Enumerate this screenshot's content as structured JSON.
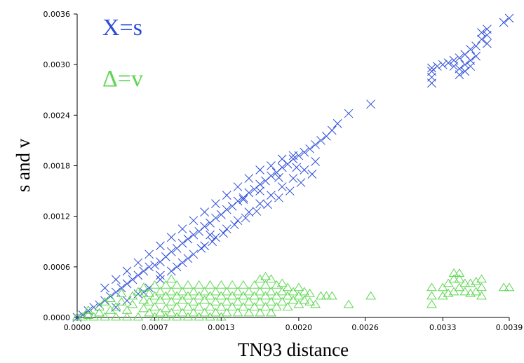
{
  "chart_data": {
    "type": "scatter",
    "xlabel": "TN93 distance",
    "ylabel": "s and v",
    "xlim": [
      0,
      0.0039
    ],
    "ylim": [
      0,
      0.0036
    ],
    "x_ticks": [
      "0.0000",
      "0.0007",
      "0.0013",
      "0.0020",
      "0.0026",
      "0.0033",
      "0.0039"
    ],
    "y_ticks": [
      "0.0000",
      "0.0006",
      "0.0012",
      "0.0018",
      "0.0024",
      "0.0030",
      "0.0036"
    ],
    "grid": false,
    "legend": {
      "placement": "top-left",
      "entries": [
        {
          "label": "X=s",
          "color": "#2a4bd8",
          "marker": "x"
        },
        {
          "label": "Δ=v",
          "color": "#5ed652",
          "marker": "triangle"
        }
      ]
    },
    "series": [
      {
        "name": "s",
        "marker": "x",
        "color": "#2a4bd8",
        "points": [
          [
            0.0,
            0.0
          ],
          [
            5e-05,
            3e-05
          ],
          [
            0.0001,
            8e-05
          ],
          [
            0.00015,
            0.00012
          ],
          [
            0.0002,
            0.00015
          ],
          [
            0.00025,
            0.0002
          ],
          [
            0.0003,
            0.00025
          ],
          [
            0.00035,
            0.0003
          ],
          [
            0.0004,
            0.00035
          ],
          [
            0.00045,
            0.0004
          ],
          [
            0.0005,
            0.00045
          ],
          [
            0.00055,
            0.0005
          ],
          [
            0.0006,
            0.00055
          ],
          [
            0.00065,
            0.0006
          ],
          [
            0.0007,
            0.00062
          ],
          [
            0.00075,
            0.00066
          ],
          [
            0.0008,
            0.00072
          ],
          [
            0.00085,
            0.00078
          ],
          [
            0.0009,
            0.00082
          ],
          [
            0.00095,
            0.00088
          ],
          [
            0.001,
            0.00093
          ],
          [
            0.00105,
            0.00098
          ],
          [
            0.0011,
            0.00102
          ],
          [
            0.00115,
            0.00108
          ],
          [
            0.0012,
            0.00112
          ],
          [
            0.00125,
            0.00118
          ],
          [
            0.0013,
            0.00122
          ],
          [
            0.00135,
            0.00128
          ],
          [
            0.0014,
            0.00132
          ],
          [
            0.00145,
            0.00138
          ],
          [
            0.0015,
            0.00142
          ],
          [
            0.00155,
            0.00148
          ],
          [
            0.0016,
            0.00152
          ],
          [
            0.00165,
            0.00158
          ],
          [
            0.0017,
            0.00162
          ],
          [
            0.00175,
            0.00168
          ],
          [
            0.0018,
            0.00172
          ],
          [
            0.00185,
            0.00178
          ],
          [
            0.0019,
            0.00182
          ],
          [
            0.00195,
            0.00188
          ],
          [
            0.002,
            0.00192
          ],
          [
            0.00205,
            0.00196
          ],
          [
            0.0021,
            0.002
          ],
          [
            0.00215,
            0.00205
          ],
          [
            0.0022,
            0.0021
          ],
          [
            0.00225,
            0.00215
          ],
          [
            0.0023,
            0.00222
          ],
          [
            0.00235,
            0.0023
          ],
          [
            0.00245,
            0.00242
          ],
          [
            0.00265,
            0.00253
          ],
          [
            0.00035,
            0.00012
          ],
          [
            0.00045,
            0.0002
          ],
          [
            0.00055,
            0.00028
          ],
          [
            0.00065,
            0.00035
          ],
          [
            0.00075,
            0.00045
          ],
          [
            0.00085,
            0.00055
          ],
          [
            0.00095,
            0.00065
          ],
          [
            0.00105,
            0.00075
          ],
          [
            0.00115,
            0.00085
          ],
          [
            0.00125,
            0.00095
          ],
          [
            0.00135,
            0.00105
          ],
          [
            0.00145,
            0.00115
          ],
          [
            0.00155,
            0.00125
          ],
          [
            0.00165,
            0.00135
          ],
          [
            0.00175,
            0.00145
          ],
          [
            0.00185,
            0.00155
          ],
          [
            0.00195,
            0.00165
          ],
          [
            0.00205,
            0.00175
          ],
          [
            0.00215,
            0.00185
          ],
          [
            0.00025,
            0.00035
          ],
          [
            0.00035,
            0.00045
          ],
          [
            0.00045,
            0.00055
          ],
          [
            0.00055,
            0.00065
          ],
          [
            0.00065,
            0.00075
          ],
          [
            0.00075,
            0.00085
          ],
          [
            0.00085,
            0.00095
          ],
          [
            0.00095,
            0.00105
          ],
          [
            0.00105,
            0.00115
          ],
          [
            0.00115,
            0.00125
          ],
          [
            0.00125,
            0.00135
          ],
          [
            0.00135,
            0.00145
          ],
          [
            0.00145,
            0.00155
          ],
          [
            0.00155,
            0.00165
          ],
          [
            0.00165,
            0.00175
          ],
          [
            0.00175,
            0.0018
          ],
          [
            0.00185,
            0.00188
          ],
          [
            0.00195,
            0.00192
          ],
          [
            0.0006,
            0.0003
          ],
          [
            0.00075,
            0.0005
          ],
          [
            0.0009,
            0.0006
          ],
          [
            0.001,
            0.0007
          ],
          [
            0.00112,
            0.00082
          ],
          [
            0.00122,
            0.0009
          ],
          [
            0.00132,
            0.001
          ],
          [
            0.00142,
            0.0011
          ],
          [
            0.00152,
            0.00118
          ],
          [
            0.00162,
            0.00126
          ],
          [
            0.00172,
            0.00134
          ],
          [
            0.00182,
            0.00142
          ],
          [
            0.00192,
            0.0015
          ],
          [
            0.00202,
            0.0016
          ],
          [
            0.00212,
            0.0017
          ],
          [
            0.0012,
            0.00098
          ],
          [
            0.0015,
            0.0014
          ],
          [
            0.00165,
            0.0015
          ],
          [
            0.00182,
            0.00166
          ],
          [
            0.00198,
            0.00178
          ],
          [
            0.0032,
            0.00278
          ],
          [
            0.0032,
            0.00285
          ],
          [
            0.0032,
            0.00292
          ],
          [
            0.0032,
            0.00296
          ],
          [
            0.00325,
            0.00298
          ],
          [
            0.0033,
            0.003
          ],
          [
            0.00335,
            0.00302
          ],
          [
            0.0034,
            0.00298
          ],
          [
            0.0034,
            0.00305
          ],
          [
            0.00345,
            0.00308
          ],
          [
            0.00345,
            0.00295
          ],
          [
            0.00345,
            0.00288
          ],
          [
            0.0035,
            0.00312
          ],
          [
            0.0035,
            0.003
          ],
          [
            0.0035,
            0.00292
          ],
          [
            0.00355,
            0.00318
          ],
          [
            0.00355,
            0.00305
          ],
          [
            0.00355,
            0.00298
          ],
          [
            0.0036,
            0.00322
          ],
          [
            0.0036,
            0.0031
          ],
          [
            0.00365,
            0.0033
          ],
          [
            0.00365,
            0.00338
          ],
          [
            0.0037,
            0.00335
          ],
          [
            0.0037,
            0.00342
          ],
          [
            0.0037,
            0.00325
          ],
          [
            0.00385,
            0.0035
          ],
          [
            0.0039,
            0.00355
          ]
        ]
      },
      {
        "name": "v",
        "marker": "triangle",
        "color": "#5ed652",
        "points": [
          [
            0.0,
            0.0
          ],
          [
            5e-05,
            0.0
          ],
          [
            0.0001,
            2e-05
          ],
          [
            0.0001,
            8e-05
          ],
          [
            0.00015,
            0.0
          ],
          [
            0.0002,
            5e-05
          ],
          [
            0.0002,
            0.00012
          ],
          [
            0.00025,
            0.0
          ],
          [
            0.00025,
            0.00018
          ],
          [
            0.0003,
            8e-05
          ],
          [
            0.0003,
            0.00022
          ],
          [
            0.00035,
            0.0
          ],
          [
            0.00035,
            0.00012
          ],
          [
            0.0004,
            0.00018
          ],
          [
            0.0004,
            0.00028
          ],
          [
            0.00045,
            0.0
          ],
          [
            0.00045,
            8e-05
          ],
          [
            0.0005,
            0.00015
          ],
          [
            0.0005,
            0.00025
          ],
          [
            0.00055,
            0.0003
          ],
          [
            0.00055,
            0.0
          ],
          [
            0.0006,
            0.0001
          ],
          [
            0.0006,
            0.0002
          ],
          [
            0.0006,
            0.00035
          ],
          [
            0.00065,
            5e-05
          ],
          [
            0.00065,
            0.00018
          ],
          [
            0.00065,
            0.00028
          ],
          [
            0.0007,
            0.0
          ],
          [
            0.0007,
            0.00012
          ],
          [
            0.0007,
            0.00025
          ],
          [
            0.0007,
            0.00038
          ],
          [
            0.00075,
            5e-05
          ],
          [
            0.00075,
            0.0002
          ],
          [
            0.00075,
            0.0003
          ],
          [
            0.0008,
            0.0
          ],
          [
            0.0008,
            0.0001
          ],
          [
            0.0008,
            0.00025
          ],
          [
            0.0008,
            0.00038
          ],
          [
            0.00085,
            5e-05
          ],
          [
            0.00085,
            0.00018
          ],
          [
            0.00085,
            0.0003
          ],
          [
            0.00085,
            0.00045
          ],
          [
            0.0009,
            0.0
          ],
          [
            0.0009,
            0.00012
          ],
          [
            0.0009,
            0.00025
          ],
          [
            0.0009,
            0.00038
          ],
          [
            0.00095,
            5e-05
          ],
          [
            0.00095,
            0.0002
          ],
          [
            0.00095,
            0.0003
          ],
          [
            0.001,
            0.0
          ],
          [
            0.001,
            0.00012
          ],
          [
            0.001,
            0.00025
          ],
          [
            0.001,
            0.00038
          ],
          [
            0.00105,
            5e-05
          ],
          [
            0.00105,
            0.00018
          ],
          [
            0.00105,
            0.0003
          ],
          [
            0.0011,
            0.0
          ],
          [
            0.0011,
            0.00012
          ],
          [
            0.0011,
            0.00025
          ],
          [
            0.0011,
            0.00038
          ],
          [
            0.00115,
            5e-05
          ],
          [
            0.00115,
            0.0002
          ],
          [
            0.00115,
            0.0003
          ],
          [
            0.0012,
            0.0
          ],
          [
            0.0012,
            0.00012
          ],
          [
            0.0012,
            0.00025
          ],
          [
            0.0012,
            0.00038
          ],
          [
            0.00125,
            5e-05
          ],
          [
            0.00125,
            0.00018
          ],
          [
            0.00125,
            0.0003
          ],
          [
            0.0013,
            0.0
          ],
          [
            0.0013,
            0.00012
          ],
          [
            0.0013,
            0.00025
          ],
          [
            0.0013,
            0.00038
          ],
          [
            0.00135,
            5e-05
          ],
          [
            0.00135,
            0.00018
          ],
          [
            0.00135,
            0.0003
          ],
          [
            0.0014,
            0.00012
          ],
          [
            0.0014,
            0.00025
          ],
          [
            0.0014,
            0.00038
          ],
          [
            0.00145,
            5e-05
          ],
          [
            0.00145,
            0.00018
          ],
          [
            0.00145,
            0.0003
          ],
          [
            0.0015,
            0.00012
          ],
          [
            0.0015,
            0.00025
          ],
          [
            0.0015,
            0.00038
          ],
          [
            0.00155,
            5e-05
          ],
          [
            0.00155,
            0.00018
          ],
          [
            0.00155,
            0.0003
          ],
          [
            0.0016,
            0.00012
          ],
          [
            0.0016,
            0.00025
          ],
          [
            0.0016,
            0.00038
          ],
          [
            0.00165,
            5e-05
          ],
          [
            0.00165,
            0.00018
          ],
          [
            0.00165,
            0.0003
          ],
          [
            0.00165,
            0.00045
          ],
          [
            0.0017,
            0.00012
          ],
          [
            0.0017,
            0.00025
          ],
          [
            0.0017,
            0.00038
          ],
          [
            0.0017,
            0.00048
          ],
          [
            0.00175,
            5e-05
          ],
          [
            0.00175,
            0.00018
          ],
          [
            0.00175,
            0.0003
          ],
          [
            0.00175,
            0.00045
          ],
          [
            0.0018,
            0.00012
          ],
          [
            0.0018,
            0.00025
          ],
          [
            0.0018,
            0.00038
          ],
          [
            0.00185,
            0.00018
          ],
          [
            0.00185,
            0.0003
          ],
          [
            0.00185,
            0.0004
          ],
          [
            0.0019,
            0.00012
          ],
          [
            0.0019,
            0.00025
          ],
          [
            0.0019,
            0.00035
          ],
          [
            0.00195,
            0.0002
          ],
          [
            0.00195,
            0.0003
          ],
          [
            0.002,
            0.00015
          ],
          [
            0.002,
            0.00025
          ],
          [
            0.002,
            0.00035
          ],
          [
            0.00205,
            0.0002
          ],
          [
            0.00205,
            0.0003
          ],
          [
            0.0021,
            0.00018
          ],
          [
            0.0021,
            0.00028
          ],
          [
            0.00215,
            0.00015
          ],
          [
            0.0022,
            0.00025
          ],
          [
            0.00225,
            0.00025
          ],
          [
            0.0023,
            0.00025
          ],
          [
            0.00245,
            0.00015
          ],
          [
            0.00265,
            0.00025
          ],
          [
            0.0032,
            0.00015
          ],
          [
            0.0032,
            0.00025
          ],
          [
            0.0032,
            0.00035
          ],
          [
            0.0033,
            0.00025
          ],
          [
            0.0033,
            0.00035
          ],
          [
            0.00335,
            0.00028
          ],
          [
            0.00335,
            0.0004
          ],
          [
            0.0034,
            0.0003
          ],
          [
            0.0034,
            0.00045
          ],
          [
            0.0034,
            0.00052
          ],
          [
            0.00345,
            0.00035
          ],
          [
            0.00345,
            0.00045
          ],
          [
            0.00345,
            0.00052
          ],
          [
            0.0035,
            0.0003
          ],
          [
            0.0035,
            0.0004
          ],
          [
            0.00355,
            0.00028
          ],
          [
            0.00355,
            0.0004
          ],
          [
            0.0036,
            0.0003
          ],
          [
            0.0036,
            0.00042
          ],
          [
            0.00365,
            0.00025
          ],
          [
            0.00365,
            0.00035
          ],
          [
            0.00365,
            0.00045
          ],
          [
            0.00385,
            0.00035
          ],
          [
            0.0039,
            0.00035
          ]
        ]
      }
    ]
  }
}
